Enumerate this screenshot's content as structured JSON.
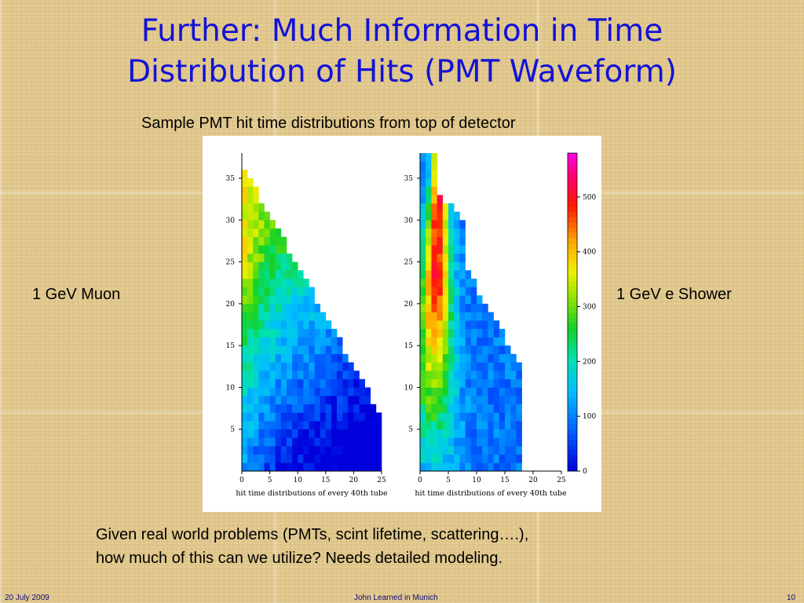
{
  "slide": {
    "title_line1": "Further: Much Information in Time",
    "title_line2": "Distribution of Hits (PMT Waveform)",
    "caption": "Sample PMT hit time distributions from top of detector",
    "left_label": "1 GeV Muon",
    "right_label": "1 GeV e Shower",
    "bottom_line1": "Given real world problems (PMTs, scint lifetime, scattering….),",
    "bottom_line2": "how much of this can we utilize? Needs detailed modeling.",
    "footer_date": "20 July 2009",
    "footer_author": "John Learned in Munich",
    "footer_page": "10"
  },
  "colors": {
    "title": "#1212d6",
    "background": "#e3c98c",
    "footer": "#0b0b7a"
  },
  "chart_data": [
    {
      "type": "heatmap",
      "xlabel": "hit time distributions of every 40th tube",
      "x_ticks": [
        "0",
        "5",
        "10",
        "15",
        "20",
        "25"
      ],
      "y_ticks": [
        "5",
        "10",
        "15",
        "20",
        "25",
        "30",
        "35"
      ],
      "xlim": [
        0,
        25
      ],
      "ylim": [
        0,
        38
      ]
    },
    {
      "type": "heatmap",
      "xlabel": "hit time distributions of every 40th tube",
      "x_ticks": [
        "0",
        "5",
        "10",
        "15",
        "20",
        "25"
      ],
      "y_ticks": [
        "5",
        "10",
        "15",
        "20",
        "25",
        "30",
        "35"
      ],
      "xlim": [
        0,
        25
      ],
      "ylim": [
        0,
        38
      ]
    }
  ],
  "colorbar": {
    "ticks": [
      "0",
      "100",
      "200",
      "300",
      "400",
      "500"
    ],
    "range": [
      0,
      580
    ]
  }
}
